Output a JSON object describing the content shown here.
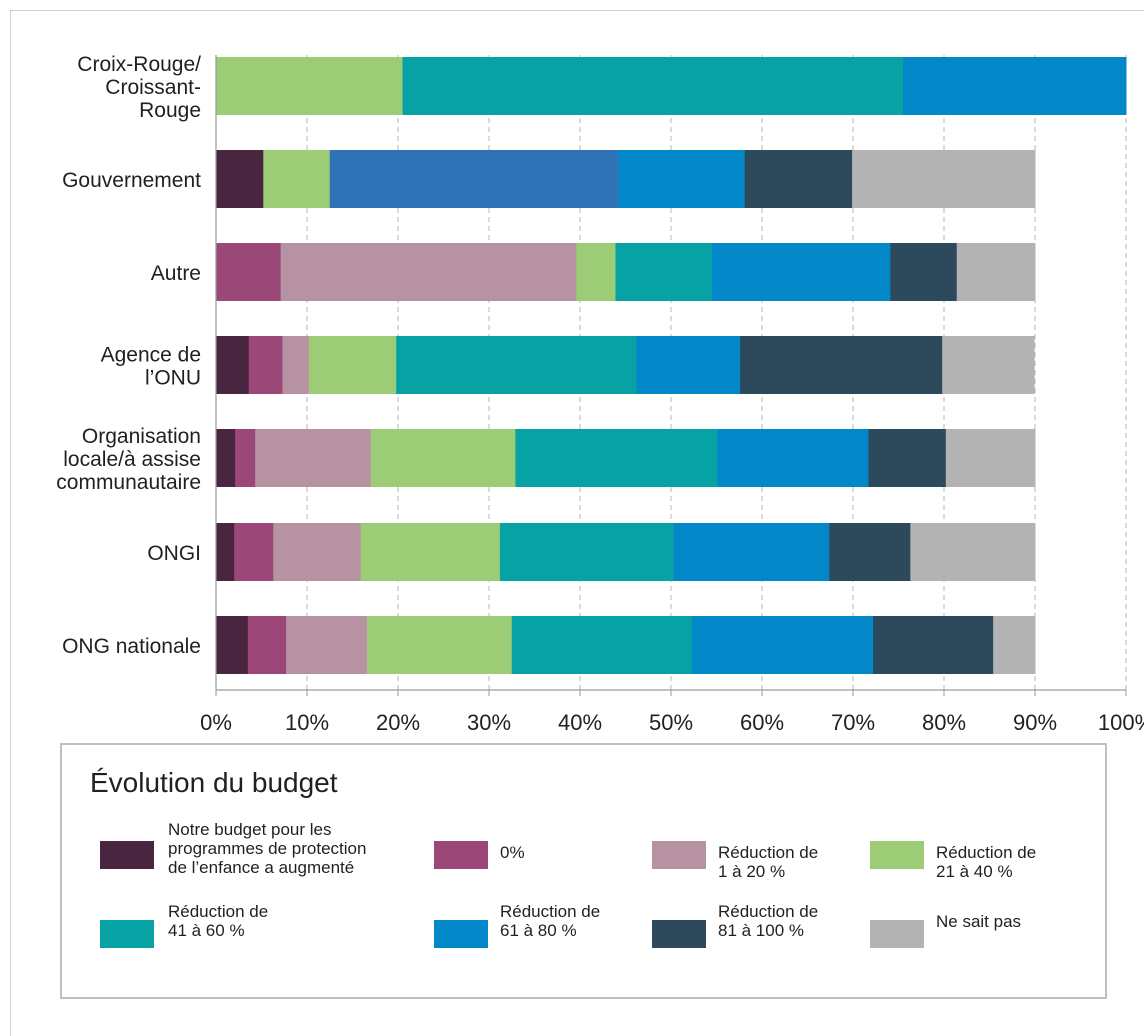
{
  "chart_data": {
    "type": "bar",
    "orientation": "horizontal",
    "stacked": true,
    "percent": true,
    "categories": [
      [
        "Croix-Rouge/",
        "Croissant-",
        "Rouge"
      ],
      [
        "Gouvernement"
      ],
      [
        "Autre"
      ],
      [
        "Agence de",
        "l’ONU"
      ],
      [
        "Organisation",
        "locale/à assise",
        "communautaire"
      ],
      [
        "ONGI"
      ],
      [
        "ONG nationale"
      ]
    ],
    "series": [
      {
        "name": "Notre budget pour les programmes de protection de l’enfance a augmenté",
        "color": "#4a2540",
        "values": [
          0,
          5.2,
          0,
          3.6,
          2.1,
          2.0,
          3.5
        ]
      },
      {
        "name": "0%",
        "color": "#9b4879",
        "values": [
          0,
          0,
          7.1,
          3.7,
          2.2,
          4.3,
          4.2
        ]
      },
      {
        "name": "Réduction de 1 à 20 %",
        "color": "#b792a3",
        "values": [
          0,
          0,
          32.5,
          2.9,
          12.7,
          9.6,
          8.9
        ]
      },
      {
        "name": "Réduction de 21 à 40 %",
        "color": "#9ccd76",
        "values": [
          20.5,
          7.3,
          4.3,
          9.6,
          15.9,
          15.3,
          15.9
        ]
      },
      {
        "name": "Réduction de 41 à 60 %",
        "color": "#07a3a4",
        "values": [
          55.0,
          31.7,
          10.6,
          26.4,
          22.2,
          19.1,
          19.8
        ]
      },
      {
        "name": "Réduction de 61 à 80 %",
        "color": "#0288c8",
        "values": [
          24.5,
          13.9,
          19.6,
          11.4,
          16.6,
          17.1,
          19.9
        ]
      },
      {
        "name": "Réduction de 81 à 100 %",
        "color": "#2d4a5d",
        "values": [
          0,
          11.8,
          7.3,
          22.2,
          8.5,
          8.9,
          13.2
        ]
      },
      {
        "name": "Ne sait pas",
        "color": "#b3b3b3",
        "values": [
          0,
          20.1,
          8.6,
          10.1,
          9.8,
          13.7,
          4.6
        ]
      }
    ],
    "overrides": {
      "1": {
        "4": "#2f72b5"
      }
    },
    "xlim": [
      0,
      100
    ],
    "xticks": [
      "0%",
      "10%",
      "20%",
      "30%",
      "40%",
      "50%",
      "60%",
      "70%",
      "80%",
      "90%",
      "100%"
    ],
    "grid": "vertical-dashed",
    "legend": {
      "title": "Évolution du budget",
      "placement": "bottom",
      "labels": [
        [
          "Notre budget pour les",
          "programmes de protection",
          "de l’enfance a augmenté"
        ],
        [
          "0%"
        ],
        [
          "Réduction de",
          "1 à 20 %"
        ],
        [
          "Réduction de",
          "21 à 40 %"
        ],
        [
          "Réduction de",
          "41 à 60 %"
        ],
        [
          "Réduction de",
          "61 à 80 %"
        ],
        [
          "Réduction de",
          "81 à 100 %"
        ],
        [
          "Ne sait pas"
        ]
      ]
    }
  }
}
